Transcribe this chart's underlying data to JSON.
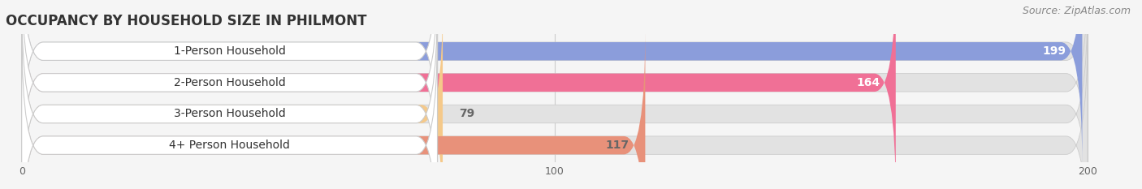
{
  "title": "OCCUPANCY BY HOUSEHOLD SIZE IN PHILMONT",
  "source": "Source: ZipAtlas.com",
  "categories": [
    "1-Person Household",
    "2-Person Household",
    "3-Person Household",
    "4+ Person Household"
  ],
  "values": [
    199,
    164,
    79,
    117
  ],
  "bar_colors": [
    "#8b9ddb",
    "#f07096",
    "#f5c98a",
    "#e8917a"
  ],
  "value_label_colors": [
    "white",
    "white",
    "#666666",
    "#666666"
  ],
  "xlim": [
    -3,
    207
  ],
  "xticks": [
    0,
    100,
    200
  ],
  "title_fontsize": 12,
  "source_fontsize": 9,
  "bar_label_fontsize": 10,
  "category_fontsize": 10,
  "background_color": "#f5f5f5",
  "bar_bg_color": "#e2e2e2",
  "bar_bg_max": 200
}
